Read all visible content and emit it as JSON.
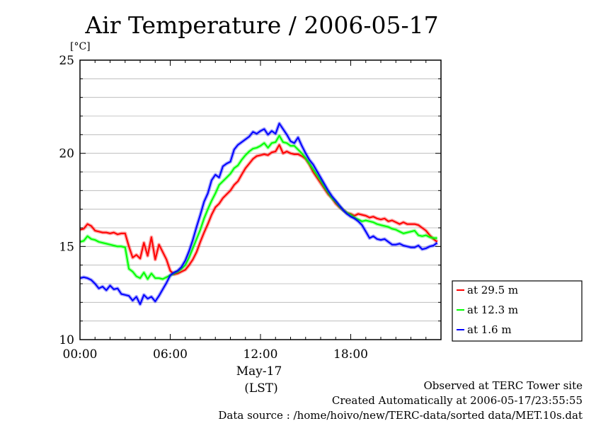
{
  "chart_data": {
    "type": "line",
    "title": "Air Temperature / 2006-05-17",
    "ylabel": "[°C]",
    "xlabel": "(LST)",
    "date_label": "May-17",
    "xlim": [
      0,
      24
    ],
    "ylim": [
      10,
      25
    ],
    "x_ticks": [
      {
        "value": 0,
        "label": "00:00"
      },
      {
        "value": 6,
        "label": "06:00"
      },
      {
        "value": 12,
        "label": "12:00"
      },
      {
        "value": 18,
        "label": "18:00"
      }
    ],
    "y_ticks": [
      {
        "value": 10,
        "label": "10"
      },
      {
        "value": 15,
        "label": "15"
      },
      {
        "value": 20,
        "label": "20"
      },
      {
        "value": 25,
        "label": "25"
      }
    ],
    "y_grid_step": 1,
    "grid": "horizontal",
    "legend_position": "bottom-right, outside plot",
    "series": [
      {
        "name": "at 29.5 m",
        "color": "#ff0000",
        "x": [
          0.0,
          0.25,
          0.5,
          0.75,
          1.0,
          1.25,
          1.5,
          1.75,
          2.0,
          2.25,
          2.5,
          2.75,
          3.0,
          3.25,
          3.5,
          3.75,
          4.0,
          4.25,
          4.5,
          4.75,
          5.0,
          5.25,
          5.5,
          5.75,
          6.0,
          6.25,
          6.5,
          6.75,
          7.0,
          7.25,
          7.5,
          7.75,
          8.0,
          8.25,
          8.5,
          8.75,
          9.0,
          9.25,
          9.5,
          9.75,
          10.0,
          10.25,
          10.5,
          10.75,
          11.0,
          11.25,
          11.5,
          11.75,
          12.0,
          12.25,
          12.5,
          12.75,
          13.0,
          13.25,
          13.5,
          13.75,
          14.0,
          14.25,
          14.5,
          14.75,
          15.0,
          15.25,
          15.5,
          15.75,
          16.0,
          16.25,
          16.5,
          16.75,
          17.0,
          17.25,
          17.5,
          17.75,
          18.0,
          18.25,
          18.5,
          18.75,
          19.0,
          19.25,
          19.5,
          19.75,
          20.0,
          20.25,
          20.5,
          20.75,
          21.0,
          21.25,
          21.5,
          21.75,
          22.0,
          22.25,
          22.5,
          22.75,
          23.0,
          23.25,
          23.5,
          23.75
        ],
        "y": [
          15.9,
          15.95,
          16.2,
          16.1,
          15.85,
          15.8,
          15.75,
          15.75,
          15.7,
          15.75,
          15.65,
          15.7,
          15.7,
          15.0,
          14.4,
          14.55,
          14.35,
          15.2,
          14.5,
          15.5,
          14.3,
          15.1,
          14.7,
          14.3,
          13.7,
          13.5,
          13.55,
          13.65,
          13.75,
          14.0,
          14.3,
          14.7,
          15.25,
          15.75,
          16.2,
          16.7,
          17.1,
          17.3,
          17.6,
          17.8,
          18.0,
          18.3,
          18.5,
          18.85,
          19.2,
          19.45,
          19.7,
          19.85,
          19.9,
          19.95,
          19.9,
          20.05,
          20.1,
          20.45,
          20.0,
          20.1,
          20.0,
          19.95,
          19.95,
          19.85,
          19.7,
          19.4,
          19.0,
          18.7,
          18.4,
          18.1,
          17.8,
          17.6,
          17.3,
          17.1,
          16.95,
          16.8,
          16.75,
          16.65,
          16.75,
          16.7,
          16.65,
          16.55,
          16.6,
          16.5,
          16.45,
          16.5,
          16.35,
          16.4,
          16.3,
          16.2,
          16.3,
          16.2,
          16.2,
          16.2,
          16.15,
          16.0,
          15.85,
          15.6,
          15.4,
          15.25
        ]
      },
      {
        "name": "at 12.3 m",
        "color": "#00ff00",
        "x": [
          0.0,
          0.25,
          0.5,
          0.75,
          1.0,
          1.25,
          1.5,
          1.75,
          2.0,
          2.25,
          2.5,
          2.75,
          3.0,
          3.25,
          3.5,
          3.75,
          4.0,
          4.25,
          4.5,
          4.75,
          5.0,
          5.25,
          5.5,
          5.75,
          6.0,
          6.25,
          6.5,
          6.75,
          7.0,
          7.25,
          7.5,
          7.75,
          8.0,
          8.25,
          8.5,
          8.75,
          9.0,
          9.25,
          9.5,
          9.75,
          10.0,
          10.25,
          10.5,
          10.75,
          11.0,
          11.25,
          11.5,
          11.75,
          12.0,
          12.25,
          12.5,
          12.75,
          13.0,
          13.25,
          13.5,
          13.75,
          14.0,
          14.25,
          14.5,
          14.75,
          15.0,
          15.25,
          15.5,
          15.75,
          16.0,
          16.25,
          16.5,
          16.75,
          17.0,
          17.25,
          17.5,
          17.75,
          18.0,
          18.25,
          18.5,
          18.75,
          19.0,
          19.25,
          19.5,
          19.75,
          20.0,
          20.25,
          20.5,
          20.75,
          21.0,
          21.25,
          21.5,
          21.75,
          22.0,
          22.25,
          22.5,
          22.75,
          23.0,
          23.25,
          23.5,
          23.75
        ],
        "y": [
          15.25,
          15.3,
          15.55,
          15.4,
          15.35,
          15.25,
          15.2,
          15.15,
          15.1,
          15.05,
          15.0,
          15.0,
          14.95,
          13.8,
          13.65,
          13.4,
          13.3,
          13.6,
          13.25,
          13.55,
          13.3,
          13.3,
          13.25,
          13.35,
          13.45,
          13.55,
          13.65,
          13.8,
          14.0,
          14.4,
          14.9,
          15.4,
          15.9,
          16.5,
          17.0,
          17.45,
          17.85,
          18.3,
          18.5,
          18.7,
          18.9,
          19.2,
          19.35,
          19.65,
          19.9,
          20.1,
          20.25,
          20.3,
          20.4,
          20.55,
          20.3,
          20.55,
          20.6,
          20.95,
          20.6,
          20.55,
          20.4,
          20.4,
          20.2,
          20.0,
          19.75,
          19.45,
          19.15,
          18.85,
          18.55,
          18.2,
          17.9,
          17.6,
          17.4,
          17.15,
          16.95,
          16.8,
          16.7,
          16.55,
          16.45,
          16.35,
          16.4,
          16.35,
          16.3,
          16.2,
          16.15,
          16.1,
          16.05,
          15.95,
          15.9,
          15.8,
          15.7,
          15.75,
          15.8,
          15.85,
          15.6,
          15.55,
          15.6,
          15.5,
          15.45,
          15.45
        ]
      },
      {
        "name": "at 1.6 m",
        "color": "#0000ff",
        "x": [
          0.0,
          0.25,
          0.5,
          0.75,
          1.0,
          1.25,
          1.5,
          1.75,
          2.0,
          2.25,
          2.5,
          2.75,
          3.0,
          3.25,
          3.5,
          3.75,
          4.0,
          4.25,
          4.5,
          4.75,
          5.0,
          5.25,
          5.5,
          5.75,
          6.0,
          6.25,
          6.5,
          6.75,
          7.0,
          7.25,
          7.5,
          7.75,
          8.0,
          8.25,
          8.5,
          8.75,
          9.0,
          9.25,
          9.5,
          9.75,
          10.0,
          10.25,
          10.5,
          10.75,
          11.0,
          11.25,
          11.5,
          11.75,
          12.0,
          12.25,
          12.5,
          12.75,
          13.0,
          13.25,
          13.5,
          13.75,
          14.0,
          14.25,
          14.5,
          14.75,
          15.0,
          15.25,
          15.5,
          15.75,
          16.0,
          16.25,
          16.5,
          16.75,
          17.0,
          17.25,
          17.5,
          17.75,
          18.0,
          18.25,
          18.5,
          18.75,
          19.0,
          19.25,
          19.5,
          19.75,
          20.0,
          20.25,
          20.5,
          20.75,
          21.0,
          21.25,
          21.5,
          21.75,
          22.0,
          22.25,
          22.5,
          22.75,
          23.0,
          23.25,
          23.5,
          23.75
        ],
        "y": [
          13.3,
          13.35,
          13.3,
          13.2,
          13.0,
          12.75,
          12.85,
          12.65,
          12.9,
          12.7,
          12.75,
          12.45,
          12.4,
          12.35,
          12.1,
          12.3,
          11.9,
          12.4,
          12.2,
          12.3,
          12.05,
          12.35,
          12.7,
          13.05,
          13.45,
          13.6,
          13.7,
          13.9,
          14.25,
          14.75,
          15.35,
          16.05,
          16.7,
          17.4,
          17.85,
          18.55,
          18.85,
          18.7,
          19.3,
          19.45,
          19.55,
          20.2,
          20.45,
          20.6,
          20.75,
          20.9,
          21.15,
          21.05,
          21.2,
          21.3,
          21.0,
          21.2,
          21.05,
          21.6,
          21.3,
          21.0,
          20.65,
          20.55,
          20.85,
          20.4,
          20.0,
          19.65,
          19.4,
          19.05,
          18.7,
          18.35,
          18.0,
          17.7,
          17.45,
          17.2,
          16.95,
          16.75,
          16.6,
          16.5,
          16.35,
          16.15,
          15.8,
          15.45,
          15.55,
          15.4,
          15.35,
          15.4,
          15.25,
          15.1,
          15.1,
          15.15,
          15.05,
          15.0,
          14.95,
          14.95,
          15.05,
          14.85,
          14.9,
          15.0,
          15.05,
          15.2
        ]
      }
    ]
  },
  "footer": {
    "line1": "Observed at TERC Tower site",
    "line2": "Created Automatically at 2006-05-17/23:55:55",
    "line3": "Data source : /home/hoivo/new/TERC-data/sorted  data/MET.10s.dat"
  }
}
